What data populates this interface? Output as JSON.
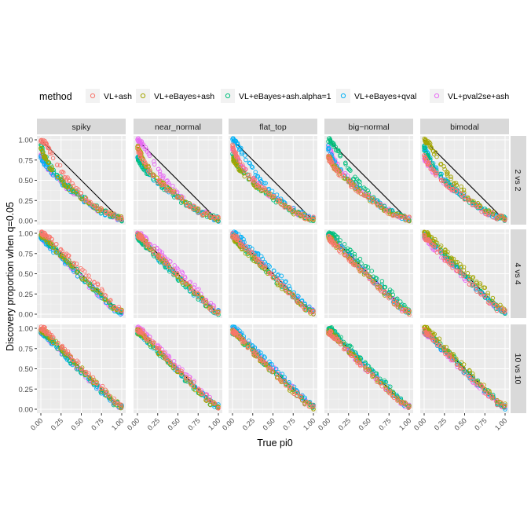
{
  "chart_data": {
    "type": "scatter",
    "layout": "facet-grid",
    "title": "",
    "xlabel": "True pi0",
    "ylabel": "Discovery proportion when q=0.05",
    "legend_title": "method",
    "legend_position": "top",
    "columns": [
      "spiky",
      "near_normal",
      "flat_top",
      "big−normal",
      "bimodal"
    ],
    "rows": [
      "2 vs 2",
      "4 vs 4",
      "10 vs 10"
    ],
    "xlim": [
      0,
      1
    ],
    "ylim": [
      0,
      1
    ],
    "x_ticks": [
      0,
      0.25,
      0.5,
      0.75,
      1
    ],
    "x_tick_labels": [
      "0.00",
      "0.25",
      "0.50",
      "0.75",
      "1.00"
    ],
    "y_ticks": [
      0,
      0.25,
      0.5,
      0.75,
      1
    ],
    "y_tick_labels": [
      "0.00",
      "0.25",
      "0.50",
      "0.75",
      "1.00"
    ],
    "grid": true,
    "reference_line": {
      "intercept": 1,
      "slope": -1
    },
    "series": [
      {
        "name": "VL+ash",
        "color": "#F8766D"
      },
      {
        "name": "VL+eBayes+ash",
        "color": "#A3A500"
      },
      {
        "name": "VL+eBayes+ash.alpha=1",
        "color": "#00BF7D"
      },
      {
        "name": "VL+eBayes+qval",
        "color": "#00B0F6"
      },
      {
        "name": "VL+pval2se+ash",
        "color": "#E76BF3"
      }
    ],
    "panel_trends": [
      [
        [
          [
            0,
            1.0
          ],
          [
            0.05,
            0.97
          ],
          [
            0.1,
            0.88
          ],
          [
            0.2,
            0.72
          ],
          [
            0.3,
            0.55
          ],
          [
            0.4,
            0.45
          ],
          [
            0.5,
            0.35
          ],
          [
            0.6,
            0.24
          ],
          [
            0.75,
            0.13
          ],
          [
            0.9,
            0.06
          ],
          [
            1,
            0.02
          ]
        ],
        [
          [
            0,
            0.9
          ],
          [
            0.05,
            0.78
          ],
          [
            0.1,
            0.68
          ],
          [
            0.2,
            0.55
          ],
          [
            0.3,
            0.45
          ],
          [
            0.4,
            0.37
          ],
          [
            0.5,
            0.29
          ],
          [
            0.6,
            0.22
          ],
          [
            0.75,
            0.12
          ],
          [
            0.9,
            0.05
          ],
          [
            1,
            0.02
          ]
        ],
        [
          [
            0,
            0.92
          ],
          [
            0.05,
            0.8
          ],
          [
            0.1,
            0.7
          ],
          [
            0.2,
            0.57
          ],
          [
            0.3,
            0.46
          ],
          [
            0.4,
            0.38
          ],
          [
            0.5,
            0.3
          ],
          [
            0.6,
            0.22
          ],
          [
            0.75,
            0.12
          ],
          [
            0.9,
            0.05
          ],
          [
            1,
            0.02
          ]
        ],
        [
          [
            0,
            0.78
          ],
          [
            0.05,
            0.7
          ],
          [
            0.1,
            0.62
          ],
          [
            0.2,
            0.53
          ],
          [
            0.3,
            0.43
          ],
          [
            0.4,
            0.36
          ],
          [
            0.5,
            0.28
          ],
          [
            0.6,
            0.21
          ],
          [
            0.75,
            0.11
          ],
          [
            0.9,
            0.05
          ],
          [
            1,
            0.02
          ]
        ],
        [
          [
            0,
            0.8
          ],
          [
            0.05,
            0.71
          ],
          [
            0.1,
            0.63
          ],
          [
            0.2,
            0.53
          ],
          [
            0.3,
            0.43
          ],
          [
            0.4,
            0.36
          ],
          [
            0.5,
            0.28
          ],
          [
            0.6,
            0.21
          ],
          [
            0.75,
            0.11
          ],
          [
            0.9,
            0.05
          ],
          [
            1,
            0.02
          ]
        ]
      ],
      [
        [
          [
            0,
            1.0
          ],
          [
            0.05,
            0.98
          ],
          [
            0.1,
            0.94
          ],
          [
            0.2,
            0.84
          ],
          [
            0.3,
            0.74
          ],
          [
            0.4,
            0.65
          ],
          [
            0.5,
            0.55
          ],
          [
            0.6,
            0.45
          ],
          [
            0.75,
            0.3
          ],
          [
            0.9,
            0.12
          ],
          [
            1,
            0.04
          ]
        ],
        [
          [
            0,
            0.98
          ],
          [
            0.05,
            0.95
          ],
          [
            0.1,
            0.88
          ],
          [
            0.2,
            0.78
          ],
          [
            0.3,
            0.68
          ],
          [
            0.4,
            0.58
          ],
          [
            0.5,
            0.47
          ],
          [
            0.6,
            0.37
          ],
          [
            0.75,
            0.23
          ],
          [
            0.9,
            0.08
          ],
          [
            1,
            0.03
          ]
        ],
        [
          [
            0,
            0.98
          ],
          [
            0.05,
            0.95
          ],
          [
            0.1,
            0.88
          ],
          [
            0.2,
            0.78
          ],
          [
            0.3,
            0.68
          ],
          [
            0.4,
            0.58
          ],
          [
            0.5,
            0.47
          ],
          [
            0.6,
            0.37
          ],
          [
            0.75,
            0.23
          ],
          [
            0.9,
            0.08
          ],
          [
            1,
            0.03
          ]
        ],
        [
          [
            0,
            0.95
          ],
          [
            0.05,
            0.9
          ],
          [
            0.1,
            0.84
          ],
          [
            0.2,
            0.74
          ],
          [
            0.3,
            0.65
          ],
          [
            0.4,
            0.55
          ],
          [
            0.5,
            0.45
          ],
          [
            0.6,
            0.35
          ],
          [
            0.75,
            0.21
          ],
          [
            0.9,
            0.07
          ],
          [
            1,
            0.02
          ]
        ],
        [
          [
            0,
            0.96
          ],
          [
            0.05,
            0.91
          ],
          [
            0.1,
            0.85
          ],
          [
            0.2,
            0.75
          ],
          [
            0.3,
            0.65
          ],
          [
            0.4,
            0.55
          ],
          [
            0.5,
            0.45
          ],
          [
            0.6,
            0.35
          ],
          [
            0.75,
            0.21
          ],
          [
            0.9,
            0.07
          ],
          [
            1,
            0.02
          ]
        ]
      ],
      [
        [
          [
            0,
            1.0
          ],
          [
            0.05,
            0.98
          ],
          [
            0.1,
            0.93
          ],
          [
            0.2,
            0.83
          ],
          [
            0.3,
            0.72
          ],
          [
            0.4,
            0.62
          ],
          [
            0.5,
            0.52
          ],
          [
            0.6,
            0.42
          ],
          [
            0.75,
            0.27
          ],
          [
            0.9,
            0.12
          ],
          [
            1,
            0.04
          ]
        ],
        [
          [
            0,
            0.98
          ],
          [
            0.05,
            0.96
          ],
          [
            0.1,
            0.9
          ],
          [
            0.2,
            0.8
          ],
          [
            0.3,
            0.7
          ],
          [
            0.4,
            0.6
          ],
          [
            0.5,
            0.5
          ],
          [
            0.6,
            0.4
          ],
          [
            0.75,
            0.25
          ],
          [
            0.9,
            0.1
          ],
          [
            1,
            0.03
          ]
        ],
        [
          [
            0,
            0.96
          ],
          [
            0.05,
            0.93
          ],
          [
            0.1,
            0.88
          ],
          [
            0.2,
            0.77
          ],
          [
            0.3,
            0.67
          ],
          [
            0.4,
            0.57
          ],
          [
            0.5,
            0.47
          ],
          [
            0.6,
            0.37
          ],
          [
            0.75,
            0.23
          ],
          [
            0.9,
            0.08
          ],
          [
            1,
            0.03
          ]
        ],
        [
          [
            0,
            0.96
          ],
          [
            0.05,
            0.92
          ],
          [
            0.1,
            0.87
          ],
          [
            0.2,
            0.76
          ],
          [
            0.3,
            0.66
          ],
          [
            0.4,
            0.56
          ],
          [
            0.5,
            0.46
          ],
          [
            0.6,
            0.36
          ],
          [
            0.75,
            0.22
          ],
          [
            0.9,
            0.08
          ],
          [
            1,
            0.03
          ]
        ],
        [
          [
            0,
            0.96
          ],
          [
            0.05,
            0.93
          ],
          [
            0.1,
            0.87
          ],
          [
            0.2,
            0.77
          ],
          [
            0.3,
            0.67
          ],
          [
            0.4,
            0.57
          ],
          [
            0.5,
            0.47
          ],
          [
            0.6,
            0.37
          ],
          [
            0.75,
            0.23
          ],
          [
            0.9,
            0.08
          ],
          [
            1,
            0.03
          ]
        ]
      ]
    ]
  }
}
